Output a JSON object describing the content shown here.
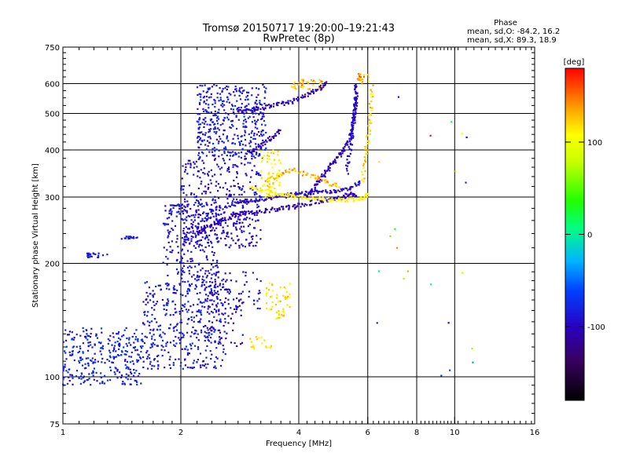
{
  "header": {
    "title_line1": "Tromsø 20150717 19:20:00–19:21:43",
    "title_line2": "RwPretec (8p)",
    "phase_heading": "Phase",
    "phase_line_o": "mean, sd,O: -84.2, 16.2",
    "phase_line_x": "mean, sd,X:  89.3, 18.9"
  },
  "chart_data": {
    "type": "scatter",
    "xlabel": "Frequency [MHz]",
    "ylabel": "Stationary phase Virtual Height [km]",
    "xscale": "log",
    "yscale": "log",
    "xlim": [
      1,
      16
    ],
    "ylim": [
      75,
      750
    ],
    "x_ticks": [
      {
        "v": 1,
        "label": "1"
      },
      {
        "v": 2,
        "label": "2"
      },
      {
        "v": 4,
        "label": "4"
      },
      {
        "v": 6,
        "label": "6"
      },
      {
        "v": 8,
        "label": "8"
      },
      {
        "v": 10,
        "label": "10"
      },
      {
        "v": 16,
        "label": "16"
      }
    ],
    "x_grid": [
      2,
      4,
      6,
      8,
      10
    ],
    "y_ticks": [
      {
        "v": 75,
        "label": "75"
      },
      {
        "v": 100,
        "label": "100"
      },
      {
        "v": 200,
        "label": "200"
      },
      {
        "v": 300,
        "label": "300"
      },
      {
        "v": 400,
        "label": "400"
      },
      {
        "v": 500,
        "label": "500"
      },
      {
        "v": 600,
        "label": "600"
      },
      {
        "v": 750,
        "label": "750"
      }
    ],
    "y_grid": [
      100,
      200,
      300,
      400,
      500,
      600
    ],
    "colorbar": {
      "label": "[deg]",
      "range": [
        -180,
        180
      ],
      "ticks": [
        {
          "v": 100,
          "label": "100"
        },
        {
          "v": 0,
          "label": "0"
        },
        {
          "v": -100,
          "label": "-100"
        }
      ]
    },
    "point_groups": [
      {
        "x": [
          1.0,
          1.6
        ],
        "y": [
          95,
          135
        ],
        "n": 300,
        "phase": [
          -100,
          -60
        ],
        "kind": "cloud"
      },
      {
        "x": [
          1.6,
          2.6
        ],
        "y": [
          105,
          180
        ],
        "n": 420,
        "phase": [
          -100,
          -70
        ],
        "kind": "cloud"
      },
      {
        "x": [
          1.8,
          2.5
        ],
        "y": [
          180,
          290
        ],
        "n": 260,
        "phase": [
          -100,
          -80
        ],
        "kind": "cloud"
      },
      {
        "x": [
          2.0,
          3.2
        ],
        "y": [
          220,
          380
        ],
        "n": 380,
        "phase": [
          -110,
          -80
        ],
        "kind": "cloud"
      },
      {
        "x": [
          2.2,
          3.3
        ],
        "y": [
          380,
          600
        ],
        "n": 420,
        "phase": [
          -100,
          -70
        ],
        "kind": "cloud"
      },
      {
        "x": [
          2.4,
          3.2
        ],
        "y": [
          150,
          190
        ],
        "n": 60,
        "phase": [
          -100,
          -80
        ],
        "kind": "cloud"
      },
      {
        "x": [
          1.15,
          1.3
        ],
        "y": [
          207,
          213
        ],
        "n": 20,
        "phase": [
          -90,
          -80
        ],
        "kind": "cloud"
      },
      {
        "x": [
          1.4,
          1.55
        ],
        "y": [
          232,
          236
        ],
        "n": 16,
        "phase": [
          -90,
          -80
        ],
        "kind": "cloud"
      },
      {
        "x": [
          2.2,
          2.8
        ],
        "y": [
          255,
          280
        ],
        "n": 0,
        "phase": [
          -100,
          -100
        ],
        "kind": "cloud"
      },
      {
        "x": [
          2.2,
          2.3,
          2.45,
          2.6,
          2.8,
          3.0,
          3.3,
          3.6,
          3.9,
          4.3,
          4.7,
          5.1,
          5.4,
          5.6
        ],
        "y": [
          240,
          250,
          255,
          262,
          270,
          272,
          276,
          280,
          283,
          290,
          295,
          300,
          305,
          300
        ],
        "n": 1,
        "phase": [
          -110,
          -100
        ],
        "kind": "curve"
      },
      {
        "x": [
          2.5,
          2.8,
          3.0,
          3.3,
          3.6,
          3.9,
          4.2,
          4.6,
          5.0,
          5.4,
          5.8
        ],
        "y": [
          280,
          290,
          293,
          298,
          302,
          305,
          308,
          310,
          312,
          318,
          330
        ],
        "n": 1,
        "phase": [
          -100,
          -90
        ],
        "kind": "curve"
      },
      {
        "x": [
          4.2,
          4.4,
          4.6,
          4.8,
          5.0,
          5.2,
          5.4,
          5.5,
          5.55,
          5.6,
          5.62
        ],
        "y": [
          300,
          320,
          340,
          360,
          380,
          400,
          430,
          470,
          510,
          560,
          600
        ],
        "n": 1,
        "phase": [
          -110,
          -95
        ],
        "kind": "curve"
      },
      {
        "x": [
          5.3,
          5.4,
          5.5,
          5.55,
          5.6
        ],
        "y": [
          350,
          400,
          450,
          500,
          560
        ],
        "n": 1,
        "phase": [
          -100,
          -90
        ],
        "kind": "curve"
      },
      {
        "x": [
          2.8,
          3.0,
          3.3,
          3.6,
          3.9,
          4.2,
          4.5,
          4.7
        ],
        "y": [
          505,
          510,
          520,
          530,
          540,
          560,
          580,
          600
        ],
        "n": 1,
        "phase": [
          -110,
          -95
        ],
        "kind": "curve"
      },
      {
        "x": [
          3.0,
          3.2,
          3.4,
          3.6
        ],
        "y": [
          395,
          410,
          430,
          450
        ],
        "n": 1,
        "phase": [
          -110,
          -100
        ],
        "kind": "curve"
      },
      {
        "x": [
          3.0,
          3.3,
          3.6,
          3.9,
          4.3,
          4.8,
          5.3,
          5.7,
          6.0
        ],
        "y": [
          320,
          310,
          305,
          300,
          298,
          296,
          295,
          296,
          305
        ],
        "n": 1,
        "phase": [
          100,
          120
        ],
        "kind": "curve"
      },
      {
        "x": [
          5.8,
          5.9,
          6.0,
          6.1,
          6.15
        ],
        "y": [
          330,
          380,
          430,
          500,
          600
        ],
        "n": 1,
        "phase": [
          100,
          140
        ],
        "kind": "curve"
      },
      {
        "x": [
          3.3,
          3.6,
          3.9,
          4.3,
          4.7,
          5.1
        ],
        "y": [
          330,
          345,
          355,
          340,
          330,
          320
        ],
        "n": 1,
        "phase": [
          110,
          150
        ],
        "kind": "curve"
      },
      {
        "x": [
          3.2,
          3.6
        ],
        "y": [
          300,
          400
        ],
        "n": 70,
        "phase": [
          100,
          130
        ],
        "kind": "cloud"
      },
      {
        "x": [
          3.8,
          4.6
        ],
        "y": [
          580,
          615
        ],
        "n": 40,
        "phase": [
          110,
          150
        ],
        "kind": "cloud"
      },
      {
        "x": [
          5.6,
          6.1
        ],
        "y": [
          600,
          640
        ],
        "n": 20,
        "phase": [
          110,
          160
        ],
        "kind": "cloud"
      },
      {
        "x": [
          3.3,
          3.8
        ],
        "y": [
          150,
          180
        ],
        "n": 40,
        "phase": [
          100,
          130
        ],
        "kind": "cloud"
      },
      {
        "x": [
          3.0,
          3.4
        ],
        "y": [
          118,
          128
        ],
        "n": 18,
        "phase": [
          100,
          130
        ],
        "kind": "cloud"
      },
      {
        "x": [
          3.5,
          3.7
        ],
        "y": [
          140,
          150
        ],
        "n": 14,
        "phase": [
          100,
          130
        ],
        "kind": "cloud"
      },
      {
        "x": [
          2.3,
          2.9
        ],
        "y": [
          120,
          180
        ],
        "n": 60,
        "phase": [
          -140,
          -90
        ],
        "kind": "cloud"
      },
      {
        "x": [
          6.3,
          12.0
        ],
        "y": [
          100,
          600
        ],
        "n": 22,
        "phase": [
          -100,
          180
        ],
        "kind": "cloud"
      }
    ]
  }
}
